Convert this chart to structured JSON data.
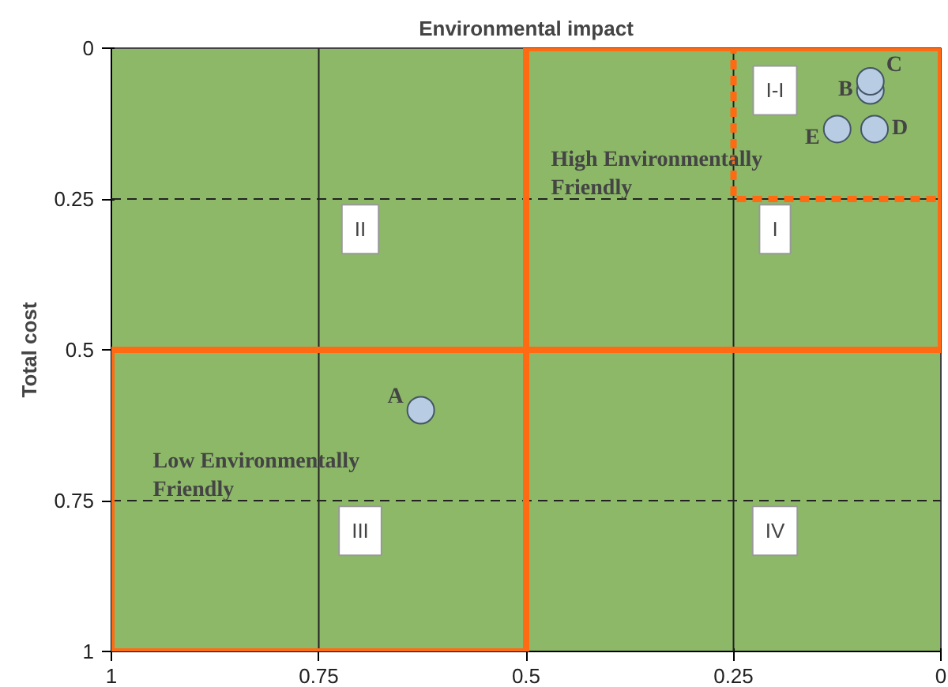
{
  "chart_data": {
    "type": "scatter",
    "xlabel": "Environmental impact",
    "ylabel": "Total cost",
    "xlim": [
      1,
      0
    ],
    "ylim": [
      1,
      0
    ],
    "xticks": [
      1,
      0.75,
      0.5,
      0.25,
      0
    ],
    "yticks": [
      0,
      0.25,
      0.5,
      0.75,
      1
    ],
    "series": [
      {
        "name": "A",
        "color": "#b8cce4",
        "marker": "circle",
        "x": [
          0.627
        ],
        "values": [
          0.6
        ]
      },
      {
        "name": "B",
        "color": "#b8cce4",
        "marker": "circle",
        "x": [
          0.085
        ],
        "values": [
          0.07
        ]
      },
      {
        "name": "C",
        "color": "#b8cce4",
        "marker": "circle",
        "x": [
          0.085
        ],
        "values": [
          0.055
        ]
      },
      {
        "name": "D",
        "color": "#b8cce4",
        "marker": "circle",
        "x": [
          0.08
        ],
        "values": [
          0.134
        ]
      },
      {
        "name": "E",
        "color": "#b8cce4",
        "marker": "circle",
        "x": [
          0.125
        ],
        "values": [
          0.134
        ]
      }
    ],
    "ref_lines": [
      {
        "axis": "x",
        "value": 0.75,
        "color": "#222222",
        "line_style": "solid"
      },
      {
        "axis": "x",
        "value": 0.25,
        "color": "#222222",
        "line_style": "solid"
      },
      {
        "axis": "y",
        "value": 0.25,
        "color": "#222222",
        "line_style": "dashed"
      },
      {
        "axis": "y",
        "value": 0.75,
        "color": "#222222",
        "line_style": "dashed"
      }
    ],
    "annotations": [
      "I-I",
      "I",
      "II",
      "III",
      "IV",
      "High Environmentally\nFriendly",
      "Low Environmentally\nFriendly"
    ]
  }
}
